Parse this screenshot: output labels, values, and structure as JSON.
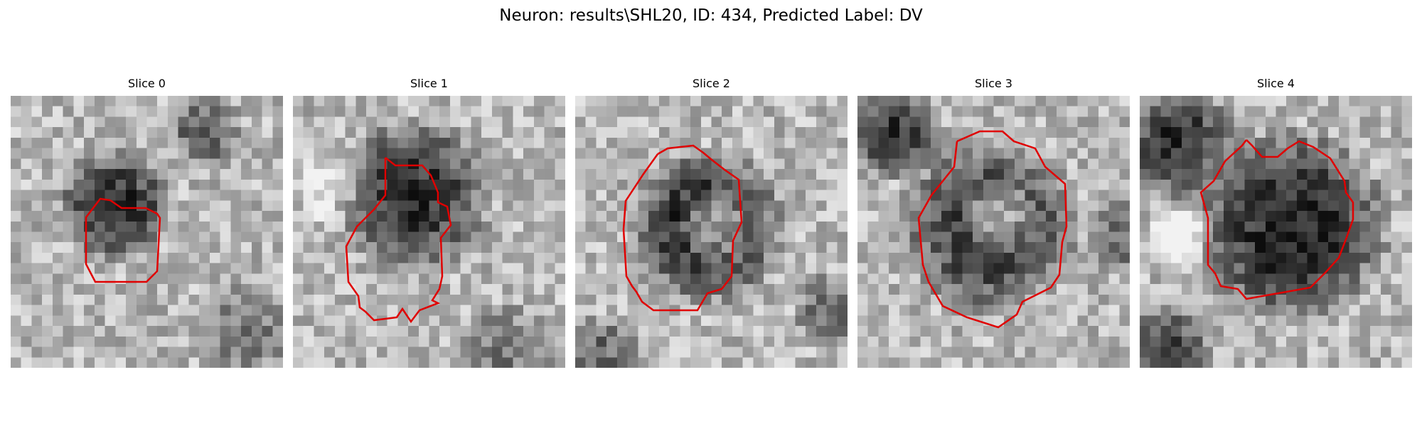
{
  "figure": {
    "title": "Neuron: results\\SHL20, ID: 434, Predicted Label: DV"
  },
  "panels": [
    {
      "title": "Slice 0",
      "contour_color": "#e00000"
    },
    {
      "title": "Slice 1",
      "contour_color": "#e00000"
    },
    {
      "title": "Slice 2",
      "contour_color": "#e00000"
    },
    {
      "title": "Slice 3",
      "contour_color": "#e00000"
    },
    {
      "title": "Slice 4",
      "contour_color": "#e00000"
    }
  ]
}
